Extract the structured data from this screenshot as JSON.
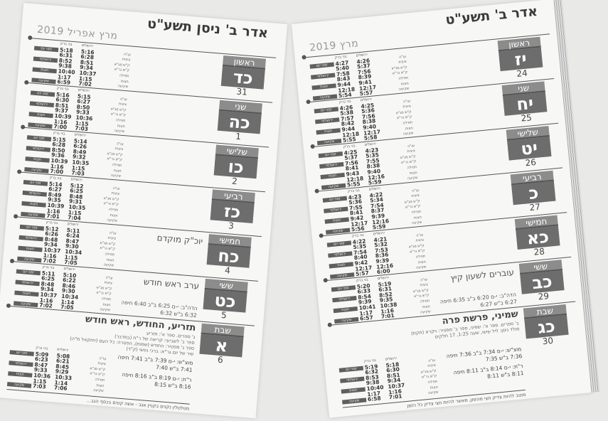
{
  "row_labels": [
    "עו\"ה",
    "ציצית",
    "ק\"ש מג\"א",
    "ק\"ש גר\"א",
    "תפילה",
    "חצות",
    "שקיעה"
  ],
  "col_labels": [
    "ירושלים",
    "בני ברק"
  ],
  "side_tags": [
    "זמני יום",
    "ירושלמי",
    "חצות",
    "שקיעה"
  ],
  "right_page": {
    "header": "אדר ב' תשע\"ט",
    "month": "מרץ 2019",
    "days": [
      {
        "name": "ראשון",
        "letter": "יז",
        "date": "24",
        "note": "",
        "times": [
          [
            "4:27",
            "4:26"
          ],
          [
            "5:40",
            "5:37"
          ],
          [
            "7:58",
            "7:56"
          ],
          [
            "8:43",
            "8:39"
          ],
          [
            "9:44",
            "9:41"
          ],
          [
            "12:18",
            "12:17"
          ],
          [
            "5:54",
            "5:57"
          ]
        ]
      },
      {
        "name": "שני",
        "letter": "יח",
        "date": "25",
        "note": "",
        "times": [
          [
            "4:26",
            "4:25"
          ],
          [
            "5:38",
            "5:36"
          ],
          [
            "7:57",
            "7:56"
          ],
          [
            "8:42",
            "8:38"
          ],
          [
            "9:44",
            "9:40"
          ],
          [
            "12:18",
            "12:17"
          ],
          [
            "5:55",
            "5:58"
          ]
        ]
      },
      {
        "name": "שלישי",
        "letter": "יט",
        "date": "26",
        "note": "",
        "times": [
          [
            "4:25",
            "4:23"
          ],
          [
            "5:37",
            "5:35"
          ],
          [
            "7:56",
            "7:55"
          ],
          [
            "8:41",
            "8:38"
          ],
          [
            "9:43",
            "9:40"
          ],
          [
            "12:18",
            "12:16"
          ],
          [
            "5:55",
            "5:59"
          ]
        ]
      },
      {
        "name": "רביעי",
        "letter": "כ",
        "date": "27",
        "note": "",
        "times": [
          [
            "4:23",
            "4:22"
          ],
          [
            "5:36",
            "5:34"
          ],
          [
            "7:55",
            "7:54"
          ],
          [
            "8:41",
            "8:37"
          ],
          [
            "9:42",
            "9:39"
          ],
          [
            "12:17",
            "12:16"
          ],
          [
            "5:56",
            "5:59"
          ]
        ]
      },
      {
        "name": "חמישי",
        "letter": "כא",
        "date": "28",
        "note": "",
        "times": [
          [
            "4:22",
            "4:21"
          ],
          [
            "5:35",
            "5:32"
          ],
          [
            "7:54",
            "7:53"
          ],
          [
            "8:40",
            "8:36"
          ],
          [
            "9:42",
            "9:39"
          ],
          [
            "12:17",
            "12:16"
          ],
          [
            "5:57",
            "6:00"
          ]
        ]
      },
      {
        "name": "ששי",
        "letter": "כב",
        "date": "29",
        "note": "עוברים לשעון קיץ",
        "candle": "הדה\"ב: י-ם 6:20 ב\"ב 6:35 חיפה 6:27 ב\"ש 6:27",
        "times": [
          [
            "5:20",
            "5:19"
          ],
          [
            "6:33",
            "6:31"
          ],
          [
            "8:54",
            "8:52"
          ],
          [
            "9:39",
            "9:35"
          ],
          [
            "10:41",
            "10:38"
          ],
          [
            "1:17",
            "1:16"
          ],
          [
            "6:57",
            "7:01"
          ]
        ]
      }
    ],
    "shabbat": {
      "name": "שבת",
      "letter": "כג",
      "date": "30",
      "title": "שמיני, פרשת פרה",
      "lines": [
        "ב' ספרים. ספר א': שמיני, ספר ב' מפטיר: ויקרא (חקת)",
        "מולד ניסן: ליל שישי, שעה 1:25, 17 חלקים"
      ],
      "exit": "מוצ\"ש: י-ם 7:34 ב\"ב 7:36 חיפה 7:36 ב\"ש 7:35",
      "rt": "ר\"ת: י-ם 8:14 ב\"ב 8:11 חיפה 8:11 ב\"ש 8:11",
      "footer": "מוטב להיות צדיק חצי מהזמן, מאשר להיות חצי צדיק כל הזמן",
      "times": [
        [
          "5:19",
          "5:18"
        ],
        [
          "6:32",
          "6:30"
        ],
        [
          "8:53",
          "8:51"
        ],
        [
          "9:38",
          "9:34"
        ],
        [
          "10:40",
          "10:37"
        ],
        [
          "1:17",
          "1:16"
        ],
        [
          "6:58",
          "7:01"
        ]
      ]
    }
  },
  "left_page": {
    "header": "אדר ב' ניסן תשע\"ט",
    "month": "מרץ אפריל 2019",
    "days": [
      {
        "name": "ראשון",
        "letter": "כד",
        "date": "31",
        "note": "",
        "times": [
          [
            "5:18",
            "5:16"
          ],
          [
            "6:31",
            "6:28"
          ],
          [
            "8:52",
            "8:51"
          ],
          [
            "9:38",
            "9:34"
          ],
          [
            "10:40",
            "10:37"
          ],
          [
            "1:17",
            "1:15"
          ],
          [
            "6:59",
            "7:02"
          ]
        ]
      },
      {
        "name": "שני",
        "letter": "כה",
        "date": "1",
        "note": "",
        "times": [
          [
            "5:16",
            "5:15"
          ],
          [
            "6:30",
            "6:27"
          ],
          [
            "8:51",
            "8:50"
          ],
          [
            "9:37",
            "9:33"
          ],
          [
            "10:39",
            "10:36"
          ],
          [
            "1:16",
            "1:15"
          ],
          [
            "7:00",
            "7:03"
          ]
        ]
      },
      {
        "name": "שלישי",
        "letter": "כו",
        "date": "2",
        "note": "",
        "times": [
          [
            "5:15",
            "5:14"
          ],
          [
            "6:28",
            "6:26"
          ],
          [
            "8:50",
            "8:49"
          ],
          [
            "9:36",
            "9:32"
          ],
          [
            "10:39",
            "10:35"
          ],
          [
            "1:16",
            "1:15"
          ],
          [
            "7:00",
            "7:03"
          ]
        ]
      },
      {
        "name": "רביעי",
        "letter": "כז",
        "date": "3",
        "note": "",
        "times": [
          [
            "5:14",
            "5:12"
          ],
          [
            "6:27",
            "6:25"
          ],
          [
            "8:49",
            "8:48"
          ],
          [
            "9:35",
            "9:31"
          ],
          [
            "10:39",
            "10:35"
          ],
          [
            "1:16",
            "1:15"
          ],
          [
            "7:01",
            "7:04"
          ]
        ]
      },
      {
        "name": "חמישי",
        "letter": "כח",
        "date": "4",
        "note": "יוכ\"ק מוקדם",
        "times": [
          [
            "5:12",
            "5:11"
          ],
          [
            "6:26",
            "6:24"
          ],
          [
            "8:48",
            "8:47"
          ],
          [
            "9:34",
            "9:30"
          ],
          [
            "10:37",
            "10:34"
          ],
          [
            "1:16",
            "1:15"
          ],
          [
            "7:02",
            "7:05"
          ]
        ]
      },
      {
        "name": "ששי",
        "letter": "כט",
        "date": "5",
        "note": "ערב ראש חודש",
        "candle": "הדה\"ב: י-ם 6:25 ב\"ב 6:40 חיפה 6:32 ב\"ש 6:32",
        "times": [
          [
            "5:11",
            "5:10"
          ],
          [
            "6:25",
            "6:22"
          ],
          [
            "8:48",
            "8:46"
          ],
          [
            "9:34",
            "9:30"
          ],
          [
            "10:37",
            "10:34"
          ],
          [
            "1:16",
            "1:14"
          ],
          [
            "7:02",
            "7:05"
          ]
        ]
      }
    ],
    "shabbat": {
      "name": "שבת",
      "letter": "א",
      "date": "6",
      "title": "תזריע, החודש, ראש חודש",
      "lines": [
        "ג' ספרים. ספר א': תזריע",
        "ספר ב' לשביעי: קריאה של ר\"ח (במדבר)",
        "ספר ג' מפטיר: החודש (שמות), הפטרה: כל העם (יחזקאל מ\"ה)",
        "שיר של יום גר\"א: ברכי נפשי (ק\"ד)"
      ],
      "exit": "מוצ\"ש: י-ם 7:39 ב\"ב 7:41 חיפה 7:41 ב\"ש 7:40",
      "rt": "ר\"ת: י-ם 8:19 ב\"ב 8:16 חיפה 8:16 ב\"ש 8:15",
      "footer": "מטלטלין נקנים בקניין אגב - אשה קונים בכסף הגב...",
      "times": [
        [
          "5:09",
          "5:08"
        ],
        [
          "6:23",
          "6:21"
        ],
        [
          "8:47",
          "8:45"
        ],
        [
          "9:33",
          "9:29"
        ],
        [
          "10:36",
          "10:33"
        ],
        [
          "1:15",
          "1:14"
        ],
        [
          "7:03",
          "7:06"
        ]
      ]
    }
  }
}
